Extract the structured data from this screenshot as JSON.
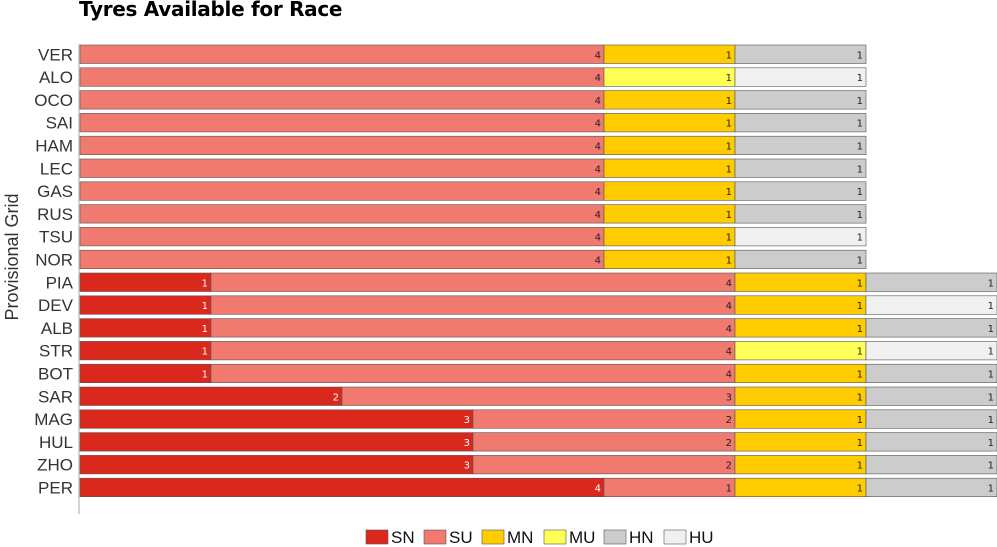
{
  "chart_data": {
    "type": "bar",
    "orientation": "horizontal-stacked",
    "title": "Tyres Available for Race",
    "ylabel": "Provisional Grid",
    "xlabel": "",
    "categories": [
      "VER",
      "ALO",
      "OCO",
      "SAI",
      "HAM",
      "LEC",
      "GAS",
      "RUS",
      "TSU",
      "NOR",
      "PIA",
      "DEV",
      "ALB",
      "STR",
      "BOT",
      "SAR",
      "MAG",
      "HUL",
      "ZHO",
      "PER"
    ],
    "segments": [
      [
        {
          "c": "SU",
          "v": 4
        },
        {
          "c": "MN",
          "v": 1
        },
        {
          "c": "HN",
          "v": 1
        }
      ],
      [
        {
          "c": "SU",
          "v": 4
        },
        {
          "c": "MU",
          "v": 1
        },
        {
          "c": "HU",
          "v": 1
        }
      ],
      [
        {
          "c": "SU",
          "v": 4
        },
        {
          "c": "MN",
          "v": 1
        },
        {
          "c": "HN",
          "v": 1
        }
      ],
      [
        {
          "c": "SU",
          "v": 4
        },
        {
          "c": "MN",
          "v": 1
        },
        {
          "c": "HN",
          "v": 1
        }
      ],
      [
        {
          "c": "SU",
          "v": 4
        },
        {
          "c": "MN",
          "v": 1
        },
        {
          "c": "HN",
          "v": 1
        }
      ],
      [
        {
          "c": "SU",
          "v": 4
        },
        {
          "c": "MN",
          "v": 1
        },
        {
          "c": "HN",
          "v": 1
        }
      ],
      [
        {
          "c": "SU",
          "v": 4
        },
        {
          "c": "MN",
          "v": 1
        },
        {
          "c": "HN",
          "v": 1
        }
      ],
      [
        {
          "c": "SU",
          "v": 4
        },
        {
          "c": "MN",
          "v": 1
        },
        {
          "c": "HN",
          "v": 1
        }
      ],
      [
        {
          "c": "SU",
          "v": 4
        },
        {
          "c": "MN",
          "v": 1
        },
        {
          "c": "HU",
          "v": 1
        }
      ],
      [
        {
          "c": "SU",
          "v": 4
        },
        {
          "c": "MN",
          "v": 1
        },
        {
          "c": "HN",
          "v": 1
        }
      ],
      [
        {
          "c": "SN",
          "v": 1
        },
        {
          "c": "SU",
          "v": 4
        },
        {
          "c": "MN",
          "v": 1
        },
        {
          "c": "HN",
          "v": 1
        }
      ],
      [
        {
          "c": "SN",
          "v": 1
        },
        {
          "c": "SU",
          "v": 4
        },
        {
          "c": "MN",
          "v": 1
        },
        {
          "c": "HU",
          "v": 1
        }
      ],
      [
        {
          "c": "SN",
          "v": 1
        },
        {
          "c": "SU",
          "v": 4
        },
        {
          "c": "MN",
          "v": 1
        },
        {
          "c": "HN",
          "v": 1
        }
      ],
      [
        {
          "c": "SN",
          "v": 1
        },
        {
          "c": "SU",
          "v": 4
        },
        {
          "c": "MU",
          "v": 1
        },
        {
          "c": "HU",
          "v": 1
        }
      ],
      [
        {
          "c": "SN",
          "v": 1
        },
        {
          "c": "SU",
          "v": 4
        },
        {
          "c": "MN",
          "v": 1
        },
        {
          "c": "HN",
          "v": 1
        }
      ],
      [
        {
          "c": "SN",
          "v": 2
        },
        {
          "c": "SU",
          "v": 3
        },
        {
          "c": "MN",
          "v": 1
        },
        {
          "c": "HN",
          "v": 1
        }
      ],
      [
        {
          "c": "SN",
          "v": 3
        },
        {
          "c": "SU",
          "v": 2
        },
        {
          "c": "MN",
          "v": 1
        },
        {
          "c": "HN",
          "v": 1
        }
      ],
      [
        {
          "c": "SN",
          "v": 3
        },
        {
          "c": "SU",
          "v": 2
        },
        {
          "c": "MN",
          "v": 1
        },
        {
          "c": "HN",
          "v": 1
        }
      ],
      [
        {
          "c": "SN",
          "v": 3
        },
        {
          "c": "SU",
          "v": 2
        },
        {
          "c": "MN",
          "v": 1
        },
        {
          "c": "HN",
          "v": 1
        }
      ],
      [
        {
          "c": "SN",
          "v": 4
        },
        {
          "c": "SU",
          "v": 1
        },
        {
          "c": "MN",
          "v": 1
        },
        {
          "c": "HN",
          "v": 1
        }
      ]
    ],
    "legend": [
      "SN",
      "SU",
      "MN",
      "MU",
      "HN",
      "HU"
    ],
    "legend_position": "bottom-center",
    "colors": {
      "SN": "#da291c",
      "SU": "#f07a6f",
      "MN": "#ffcc00",
      "MU": "#ffff55",
      "HN": "#cccccc",
      "HU": "#f0f0f0"
    },
    "xlim": [
      0,
      7
    ],
    "grid": false
  }
}
